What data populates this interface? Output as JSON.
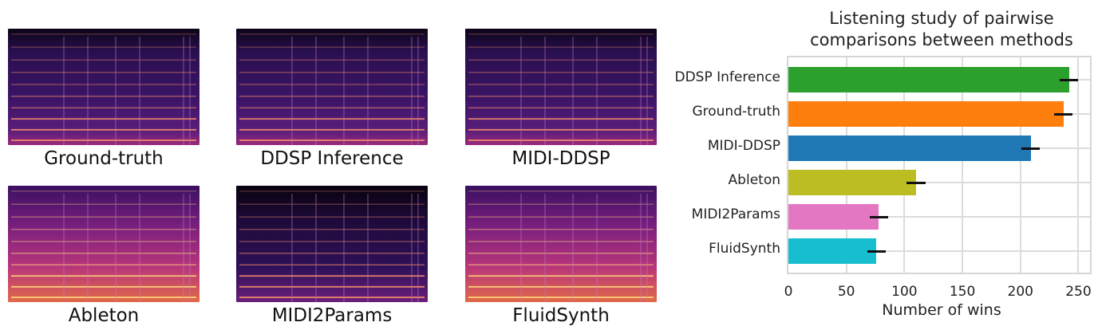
{
  "spectrograms": [
    {
      "label": "Ground-truth",
      "style": "gt"
    },
    {
      "label": "DDSP Inference",
      "style": "gt"
    },
    {
      "label": "MIDI-DDSP",
      "style": "gt"
    },
    {
      "label": "Ableton",
      "style": "bright"
    },
    {
      "label": "MIDI2Params",
      "style": "dark"
    },
    {
      "label": "FluidSynth",
      "style": "bright"
    }
  ],
  "chart_data": {
    "type": "bar",
    "orientation": "horizontal",
    "title": "Listening study of pairwise comparisons between methods",
    "title_lines": [
      "Listening study of pairwise",
      "comparisons between methods"
    ],
    "xlabel": "Number of wins",
    "ylabel": "",
    "xlim": [
      0,
      260
    ],
    "xticks": [
      0,
      50,
      100,
      150,
      200,
      250
    ],
    "grid": true,
    "categories": [
      "DDSP Inference",
      "Ground-truth",
      "MIDI-DDSP",
      "Ableton",
      "MIDI2Params",
      "FluidSynth"
    ],
    "values": [
      242,
      237,
      209,
      110,
      78,
      76
    ],
    "error": [
      8,
      8,
      8,
      8,
      8,
      8
    ],
    "colors": [
      "#2ca02c",
      "#ff7f0e",
      "#1f77b4",
      "#bcbd22",
      "#e377c2",
      "#17becf"
    ],
    "legend": null
  }
}
